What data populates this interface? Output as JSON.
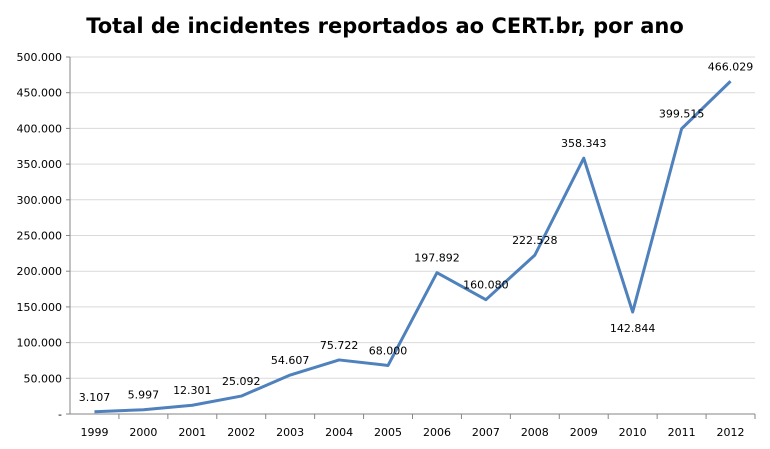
{
  "chart_data": {
    "type": "line",
    "title": "Total de incidentes reportados ao CERT.br, por ano",
    "xlabel": "",
    "ylabel": "",
    "categories": [
      "1999",
      "2000",
      "2001",
      "2002",
      "2003",
      "2004",
      "2005",
      "2006",
      "2007",
      "2008",
      "2009",
      "2010",
      "2011",
      "2012"
    ],
    "series": [
      {
        "name": "Total de incidentes",
        "values": [
          3107,
          5997,
          12301,
          25092,
          54607,
          75722,
          68000,
          197892,
          160080,
          222528,
          358343,
          142844,
          399515,
          466029
        ]
      }
    ],
    "data_labels": [
      "3.107",
      "5.997",
      "12.301",
      "25.092",
      "54.607",
      "75.722",
      "68.000",
      "197.892",
      "160.080",
      "222.528",
      "358.343",
      "142.844",
      "399.515",
      "466.029"
    ],
    "ylim": [
      0,
      500000
    ],
    "yticks": [
      0,
      50000,
      100000,
      150000,
      200000,
      250000,
      300000,
      350000,
      400000,
      450000,
      500000
    ],
    "ytick_labels": [
      "-",
      "50.000",
      "100.000",
      "150.000",
      "200.000",
      "250.000",
      "300.000",
      "350.000",
      "400.000",
      "450.000",
      "500.000"
    ],
    "grid": true,
    "legend": "none",
    "line_color": "#4F81BD",
    "grid_color": "#D9D9D9"
  }
}
